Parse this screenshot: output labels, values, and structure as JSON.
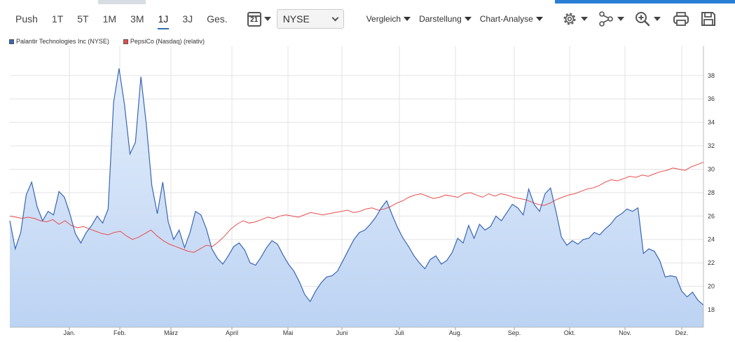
{
  "toolbar": {
    "ranges": [
      "Push",
      "1T",
      "5T",
      "1M",
      "3M",
      "1J",
      "3J",
      "Ges."
    ],
    "active_range": "1J",
    "calendar_day": "21",
    "exchange": "NYSE",
    "menus": {
      "compare": "Vergleich",
      "display": "Darstellung",
      "analysis": "Chart-Analyse"
    },
    "icons": [
      "gear-icon",
      "network-icon",
      "zoom-in-icon",
      "print-icon",
      "save-icon"
    ]
  },
  "legend": [
    {
      "label": "Palantir Technologies Inc (NYSE)",
      "color": "#3a66b4"
    },
    {
      "label": "PepsiCo (Nasdaq) (relativ)",
      "color": "#e94c4c"
    }
  ],
  "chart_data": {
    "type": "area",
    "x_ticks": [
      "Jan.",
      "Feb.",
      "März",
      "April",
      "Mai",
      "Juni",
      "Juli",
      "Aug.",
      "Sep.",
      "Okt.",
      "Nov.",
      "Dez."
    ],
    "y_ticks": [
      18,
      20,
      22,
      24,
      26,
      28,
      30,
      32,
      34,
      36,
      38
    ],
    "y_axis_position": "right",
    "grid": true,
    "legend_position": "top-left",
    "series": [
      {
        "name": "Palantir Technologies Inc (NYSE)",
        "color": "#3a66b4",
        "fill": "#cfe0f7",
        "values": [
          25.6,
          23.2,
          24.6,
          27.8,
          28.9,
          26.8,
          25.6,
          26.4,
          26.1,
          28.1,
          27.6,
          26.2,
          24.5,
          23.7,
          24.6,
          25.2,
          26.0,
          25.4,
          26.6,
          35.7,
          38.6,
          35.5,
          31.3,
          32.3,
          37.9,
          33.8,
          28.6,
          26.2,
          28.9,
          25.5,
          24.0,
          24.8,
          23.3,
          24.6,
          26.4,
          26.1,
          24.9,
          23.2,
          22.4,
          21.9,
          22.6,
          23.4,
          23.7,
          23.1,
          22.0,
          21.8,
          22.5,
          23.3,
          23.9,
          23.6,
          22.7,
          21.9,
          21.3,
          20.4,
          19.3,
          18.7,
          19.6,
          20.3,
          20.8,
          20.9,
          21.3,
          22.2,
          23.1,
          24.0,
          24.6,
          24.8,
          25.3,
          25.9,
          26.7,
          27.3,
          26.1,
          25.0,
          24.1,
          23.4,
          22.6,
          22.0,
          21.5,
          22.3,
          22.6,
          21.9,
          22.2,
          22.9,
          24.1,
          23.7,
          25.2,
          24.1,
          25.3,
          24.8,
          25.1,
          26.0,
          25.6,
          26.3,
          27.0,
          26.7,
          26.1,
          28.3,
          27.0,
          26.4,
          27.9,
          28.4,
          26.4,
          24.2,
          23.5,
          23.9,
          23.6,
          24.0,
          24.1,
          24.6,
          24.4,
          24.9,
          25.3,
          25.9,
          26.2,
          26.6,
          26.4,
          26.7,
          22.8,
          23.2,
          23.0,
          22.2,
          20.8,
          20.9,
          20.8,
          19.6,
          19.1,
          19.5,
          18.8,
          18.4
        ]
      },
      {
        "name": "PepsiCo (Nasdaq) (relativ)",
        "color": "#e94c4c",
        "values": [
          26.0,
          25.9,
          25.8,
          25.9,
          25.8,
          25.6,
          25.5,
          25.7,
          25.3,
          25.6,
          25.2,
          25.0,
          25.1,
          24.9,
          24.7,
          24.5,
          24.4,
          24.6,
          24.7,
          24.3,
          24.0,
          24.2,
          24.5,
          24.8,
          24.3,
          23.9,
          23.6,
          23.4,
          23.2,
          23.0,
          22.9,
          23.2,
          23.5,
          23.4,
          23.8,
          24.3,
          24.9,
          25.3,
          25.6,
          25.4,
          25.5,
          25.7,
          25.9,
          25.8,
          26.0,
          26.1,
          26.0,
          25.9,
          26.1,
          26.3,
          26.2,
          26.1,
          26.2,
          26.3,
          26.4,
          26.5,
          26.3,
          26.4,
          26.6,
          26.7,
          26.5,
          26.6,
          26.8,
          27.1,
          27.3,
          27.6,
          27.8,
          27.9,
          27.7,
          27.5,
          27.6,
          27.8,
          27.7,
          27.6,
          27.9,
          28.0,
          27.8,
          27.6,
          27.9,
          27.7,
          27.9,
          27.8,
          27.6,
          27.5,
          27.4,
          27.2,
          27.0,
          26.9,
          27.1,
          27.4,
          27.6,
          27.8,
          27.9,
          28.1,
          28.3,
          28.4,
          28.6,
          28.9,
          29.1,
          29.0,
          29.2,
          29.4,
          29.3,
          29.5,
          29.4,
          29.6,
          29.8,
          29.9,
          30.1,
          30.0,
          29.9,
          30.2,
          30.4,
          30.6
        ]
      }
    ]
  }
}
